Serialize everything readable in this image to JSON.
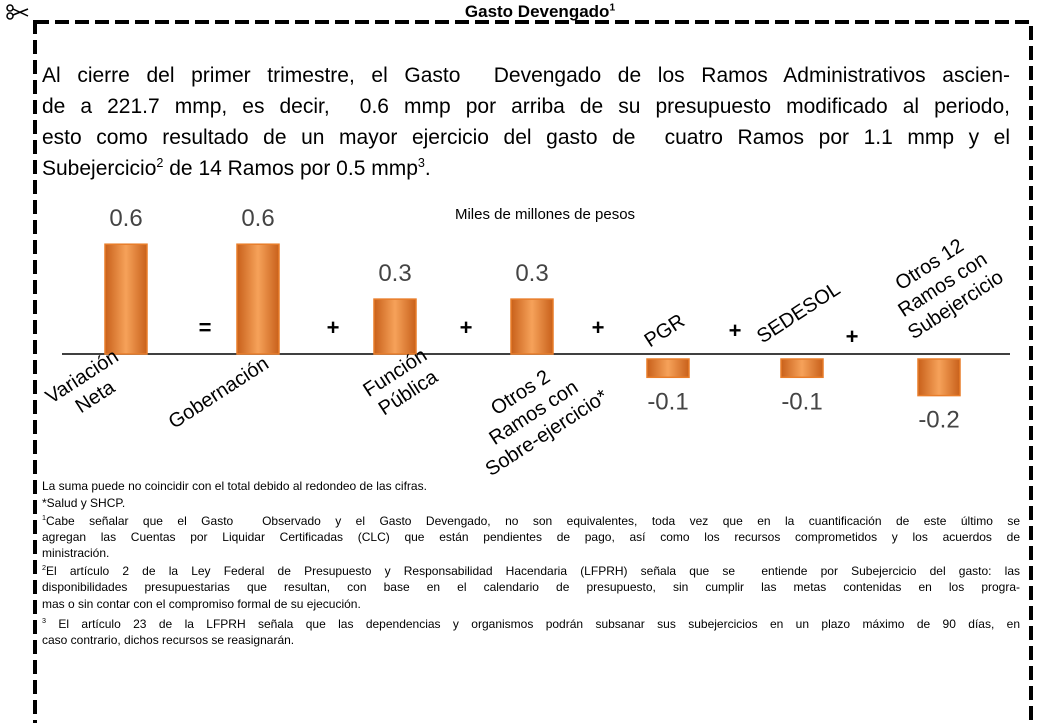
{
  "title": {
    "text": "Gasto Devengado",
    "sup": "1"
  },
  "paragraph": {
    "lines": [
      "Al cierre del primer trimestre, el Gasto  Devengado de los Ramos Administrativos ascien-",
      "de a 221.7 mmp, es decir,  0.6 mmp por arriba de su presupuesto modificado al periodo,",
      "esto como resultado de un mayor ejercicio del gasto de  cuatro Ramos por 1.1 mmp y el"
    ],
    "last": [
      "Subejercicio",
      "2",
      " de 14 Ramos por 0.5 mmp",
      "3",
      "."
    ]
  },
  "chart": {
    "type": "bar",
    "subtitle": "Miles de millones de pesos",
    "categories": [
      [
        "Variación",
        "Neta"
      ],
      [
        "Gobernación"
      ],
      [
        "Función",
        "Pública"
      ],
      [
        "Otros 2",
        "Ramos con",
        "Sobre-ejercicio*"
      ],
      [
        "PGR"
      ],
      [
        "SEDESOL"
      ],
      [
        "Otros 12",
        "Ramos con",
        "Subejercicio"
      ]
    ],
    "values": [
      0.6,
      0.6,
      0.3,
      0.3,
      -0.1,
      -0.1,
      -0.2
    ],
    "operators": [
      "=",
      "+",
      "+",
      "+",
      "+",
      "+"
    ],
    "color": "#e87d2a"
  },
  "footnotes": [
    {
      "lines": [
        "La suma puede no coincidir con el total debido al redondeo de las cifras."
      ]
    },
    {
      "lines": [
        "*Salud y SHCP."
      ]
    },
    {
      "marker": "1",
      "lines": [
        "Cabe señalar que el Gasto  Observado y el Gasto Devengado, no son equivalentes, toda vez que en la cuantificación de este último se",
        "agregan las Cuentas por Liquidar Certificadas (CLC) que están pendientes de pago, así como los recursos comprometidos y los acuerdos de",
        "ministración."
      ]
    },
    {
      "marker": "2",
      "lines": [
        "El artículo 2 de la Ley Federal de Presupuesto y Responsabilidad Hacendaria (LFPRH) señala que se  entiende por Subejercicio del gasto: las",
        "disponibilidades presupuestarias que resultan, con base en el calendario de presupuesto, sin cumplir las metas contenidas en los progra-",
        "mas o sin contar con el compromiso formal de su ejecución."
      ]
    },
    {
      "marker": "3",
      "lines": [
        " El artículo 23 de la LFPRH señala que las dependencias y organismos podrán subsanar sus subejercicios en un plazo máximo de 90 días, en",
        "caso contrario, dichos recursos se reasignarán."
      ]
    }
  ]
}
